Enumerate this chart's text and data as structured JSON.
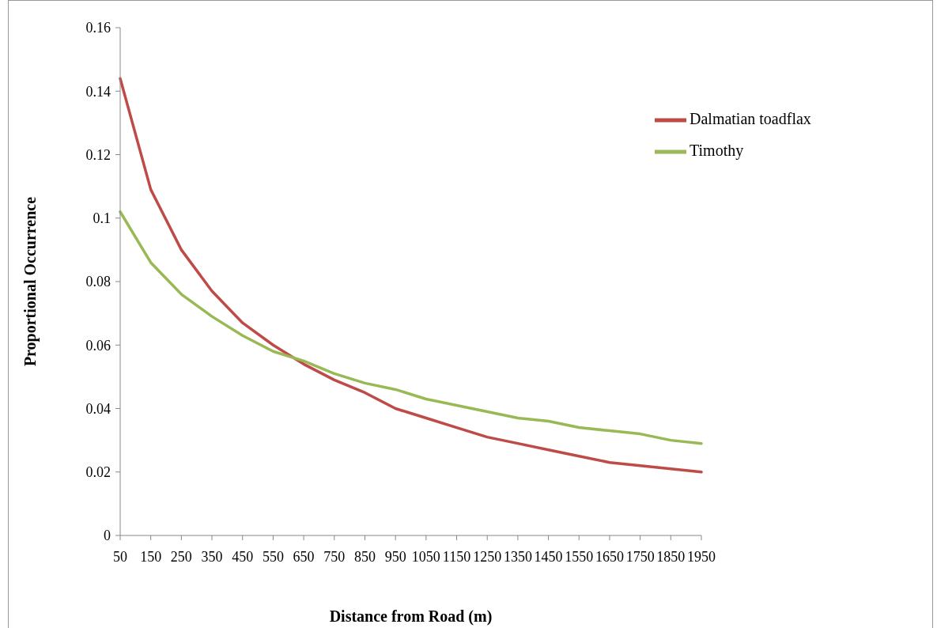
{
  "chart_data": {
    "type": "line",
    "xlabel": "Distance from Road (m)",
    "ylabel": "Proportional Occurrence",
    "categories": [
      "50",
      "150",
      "250",
      "350",
      "450",
      "550",
      "650",
      "750",
      "850",
      "950",
      "1050",
      "1150",
      "1250",
      "1350",
      "1450",
      "1550",
      "1650",
      "1750",
      "1850",
      "1950"
    ],
    "series": [
      {
        "name": "Dalmatian toadflax",
        "color": "#be4b48",
        "values": [
          0.144,
          0.109,
          0.09,
          0.077,
          0.067,
          0.06,
          0.054,
          0.049,
          0.045,
          0.04,
          0.037,
          0.034,
          0.031,
          0.029,
          0.027,
          0.025,
          0.023,
          0.022,
          0.021,
          0.02
        ]
      },
      {
        "name": "Timothy",
        "color": "#98b954",
        "values": [
          0.102,
          0.086,
          0.076,
          0.069,
          0.063,
          0.058,
          0.055,
          0.051,
          0.048,
          0.046,
          0.043,
          0.041,
          0.039,
          0.037,
          0.036,
          0.034,
          0.033,
          0.032,
          0.03,
          0.029
        ]
      }
    ],
    "ylim": [
      0,
      0.16
    ],
    "yticks": [
      0,
      0.02,
      0.04,
      0.06,
      0.08,
      0.1,
      0.12,
      0.14,
      0.16
    ],
    "legend": "top right",
    "line_style": "solid"
  }
}
